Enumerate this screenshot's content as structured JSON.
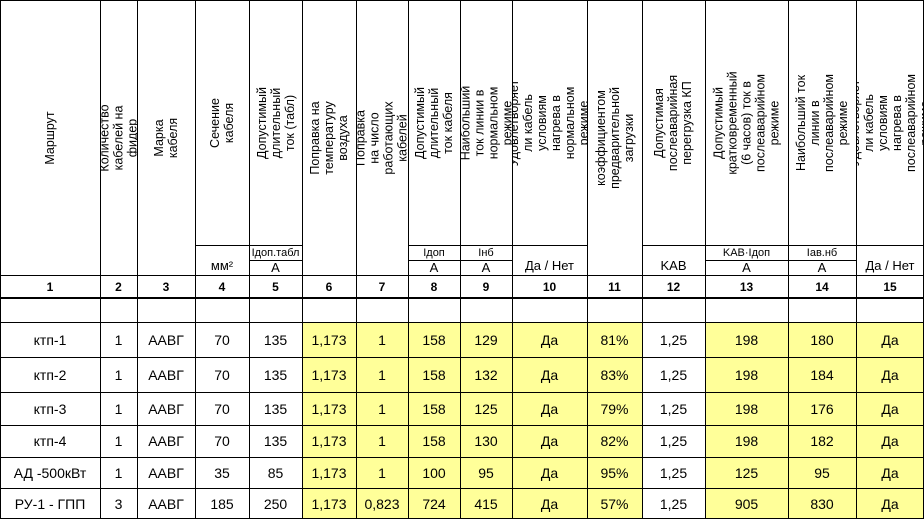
{
  "columns": [
    {
      "num": "1",
      "header": "Маршрут",
      "unit": ""
    },
    {
      "num": "2",
      "header": "Количество кабелей на фидер",
      "unit": ""
    },
    {
      "num": "3",
      "header": "Марка кабеля",
      "unit": ""
    },
    {
      "num": "4",
      "header": "Сечение кабеля",
      "unit": "мм²"
    },
    {
      "num": "5",
      "header": "Допустимый длительный ток (табл)",
      "unit_sym": "Iдоп.табл",
      "unit": "А"
    },
    {
      "num": "6",
      "header": "Поправка на температуру воздуха",
      "unit": ""
    },
    {
      "num": "7",
      "header": "Поправка на число работающих кабелей",
      "unit": ""
    },
    {
      "num": "8",
      "header": "Допустимый длительный ток кабеля",
      "unit_sym": "Iдоп",
      "unit": "А"
    },
    {
      "num": "9",
      "header": "Наибольший ток линии в нормальном режиме",
      "unit_sym": "Iнб",
      "unit": "А"
    },
    {
      "num": "10",
      "header": "Удовлетворяет ли кабель условиям нагрева в нормальном режиме",
      "unit": "Да / Нет"
    },
    {
      "num": "11",
      "header": "коэффициентом предварительной загрузки",
      "unit": ""
    },
    {
      "num": "12",
      "header": "Допустимая послеаварийная перегрузка КП",
      "unit": "KАВ"
    },
    {
      "num": "13",
      "header": "Допустимый кратковременный (6 часов) ток в послеаварийном режиме",
      "unit_sym": "KАВ·Iдоп",
      "unit": "А"
    },
    {
      "num": "14",
      "header": "Наибольший ток линии в послеаварийном режиме",
      "unit_sym": "Iав.нб",
      "unit": "А"
    },
    {
      "num": "15",
      "header": "Удовлетворяет ли кабель условиям нагрева в послеаварийном режиме",
      "unit": "Да / Нет"
    }
  ],
  "rows": [
    [
      "ктп-1",
      "1",
      "ААВГ",
      "70",
      "135",
      "1,173",
      "1",
      "158",
      "129",
      "Да",
      "81%",
      "1,25",
      "198",
      "180",
      "Да"
    ],
    [
      "ктп-2",
      "1",
      "ААВГ",
      "70",
      "135",
      "1,173",
      "1",
      "158",
      "132",
      "Да",
      "83%",
      "1,25",
      "198",
      "184",
      "Да"
    ],
    [
      "ктп-3",
      "1",
      "ААВГ",
      "70",
      "135",
      "1,173",
      "1",
      "158",
      "125",
      "Да",
      "79%",
      "1,25",
      "198",
      "176",
      "Да"
    ],
    [
      "ктп-4",
      "1",
      "ААВГ",
      "70",
      "135",
      "1,173",
      "1",
      "158",
      "130",
      "Да",
      "82%",
      "1,25",
      "198",
      "182",
      "Да"
    ],
    [
      "АД -500кВт",
      "1",
      "ААВГ",
      "35",
      "85",
      "1,173",
      "1",
      "100",
      "95",
      "Да",
      "95%",
      "1,25",
      "125",
      "95",
      "Да"
    ],
    [
      "РУ-1 - ГПП",
      "3",
      "ААВГ",
      "185",
      "250",
      "1,173",
      "0,823",
      "724",
      "415",
      "Да",
      "57%",
      "1,25",
      "905",
      "830",
      "Да"
    ]
  ]
}
